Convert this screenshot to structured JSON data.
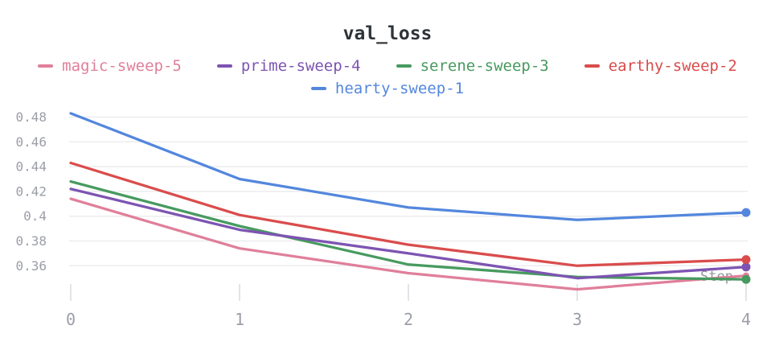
{
  "chart_data": {
    "type": "line",
    "title": "val_loss",
    "x_axis_label": "Step",
    "legend_position": "top",
    "grid": "horizontal",
    "x": [
      0,
      1,
      2,
      3,
      4
    ],
    "x_tick_labels": [
      "0",
      "1",
      "2",
      "3",
      "4"
    ],
    "y_tick_labels": [
      "0.48",
      "0.46",
      "0.44",
      "0.42",
      "0.4",
      "0.38",
      "0.36"
    ],
    "ylim": [
      0.334,
      0.487
    ],
    "xlim": [
      0,
      4
    ],
    "series": [
      {
        "name": "magic-sweep-5",
        "color": "#E07F9A",
        "z": 1,
        "values": [
          0.414,
          0.374,
          0.354,
          0.341,
          0.352
        ]
      },
      {
        "name": "prime-sweep-4",
        "color": "#7D54B2",
        "z": 3,
        "values": [
          0.422,
          0.389,
          0.37,
          0.35,
          0.359
        ]
      },
      {
        "name": "serene-sweep-3",
        "color": "#479A5F",
        "z": 2,
        "values": [
          0.428,
          0.392,
          0.361,
          0.351,
          0.349
        ]
      },
      {
        "name": "earthy-sweep-2",
        "color": "#DA4C4C",
        "z": 4,
        "values": [
          0.443,
          0.401,
          0.377,
          0.36,
          0.365
        ]
      },
      {
        "name": "hearty-sweep-1",
        "color": "#5387DD",
        "z": 5,
        "values": [
          0.483,
          0.43,
          0.407,
          0.397,
          0.403
        ]
      }
    ],
    "colors": {
      "title_text": "#2e3338",
      "axis_text": "#9b9ea7",
      "step_label_text": "#94969e",
      "gridline": "#ececef",
      "tick_mark": "#e3e4e8",
      "background": "#ffffff"
    }
  }
}
